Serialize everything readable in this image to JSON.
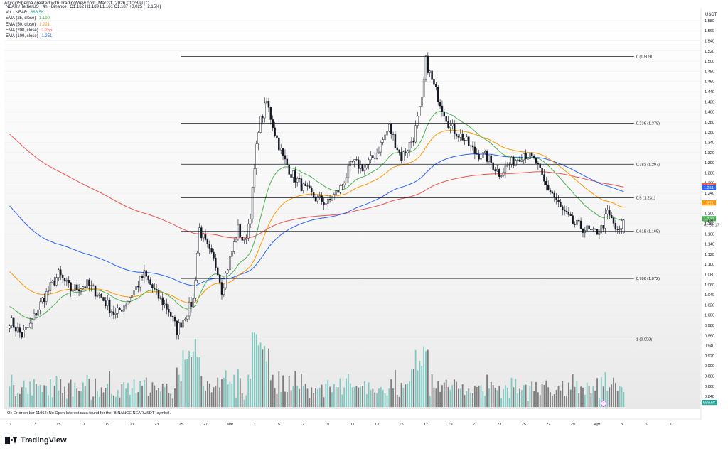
{
  "header": {
    "credit": "AltcoinSherpa created with TradingView.com, Mar 31, 2026 01:28 UTC",
    "currency": "USDT"
  },
  "legend": [
    {
      "label": "NEAR / TetherUS · 4h · Binance",
      "value": "O1.162  H1.189  L1.161  C1.187  +0.025 (+2.15%)",
      "color": "#131722"
    },
    {
      "label": "Vol · NEAR",
      "value": "686.5K",
      "color": "#26a69a"
    },
    {
      "label": "EMA (25, close)",
      "value": "1.190",
      "color": "#4caf50"
    },
    {
      "label": "EMA (50, close)",
      "value": "1.221",
      "color": "#ff9800"
    },
    {
      "label": "EMA (200, close)",
      "value": "1.255",
      "color": "#ef5350"
    },
    {
      "label": "EMA (100, close)",
      "value": "1.251",
      "color": "#2962ff"
    }
  ],
  "footer": {
    "brand": "TradingView",
    "oi_error": "OI: Error on bar 11962: No Open Interest data found for the `BINANCE:NEARUSDT` symbol."
  },
  "chart_data": {
    "type": "candlestick",
    "title": "NEAR / TetherUS · 4h · Binance",
    "y_axis": {
      "ylim": [
        0.815,
        1.605
      ],
      "tick_start": 0.84,
      "tick_end": 1.58,
      "tick_step": 0.02
    },
    "x_axis": {
      "labels": [
        "11",
        "13",
        "15",
        "17",
        "19",
        "21",
        "23",
        "25",
        "27",
        "Mar",
        "3",
        "5",
        "7",
        "9",
        "11",
        "13",
        "15",
        "17",
        "19",
        "21",
        "23",
        "25",
        "27",
        "29",
        "Apr",
        "3",
        "5",
        "7"
      ],
      "label_bar_index": [
        0,
        12,
        24,
        36,
        48,
        60,
        72,
        84,
        96,
        108,
        120,
        132,
        144,
        156,
        168,
        180,
        192,
        204,
        216,
        228,
        240,
        252,
        264,
        276,
        288,
        300,
        312,
        324
      ]
    },
    "fibonacci": [
      {
        "level": "0",
        "price": 1.509
      },
      {
        "level": "0.236",
        "price": 1.378
      },
      {
        "level": "0.382",
        "price": 1.297
      },
      {
        "level": "0.5",
        "price": 1.231
      },
      {
        "level": "0.618",
        "price": 1.165
      },
      {
        "level": "0.786",
        "price": 1.072
      },
      {
        "level": "1",
        "price": 0.953
      }
    ],
    "fib_bar_range": [
      84,
      306
    ],
    "close_anchors": [
      [
        0,
        0.99
      ],
      [
        6,
        0.96
      ],
      [
        10,
        0.98
      ],
      [
        16,
        1.03
      ],
      [
        24,
        1.08
      ],
      [
        30,
        1.05
      ],
      [
        38,
        1.06
      ],
      [
        44,
        1.04
      ],
      [
        52,
        1.0
      ],
      [
        58,
        1.03
      ],
      [
        66,
        1.08
      ],
      [
        72,
        1.04
      ],
      [
        78,
        1.01
      ],
      [
        82,
        0.97
      ],
      [
        86,
        1.0
      ],
      [
        90,
        1.03
      ],
      [
        93,
        1.17
      ],
      [
        96,
        1.14
      ],
      [
        102,
        1.09
      ],
      [
        104,
        1.05
      ],
      [
        108,
        1.11
      ],
      [
        112,
        1.17
      ],
      [
        115,
        1.14
      ],
      [
        118,
        1.2
      ],
      [
        122,
        1.37
      ],
      [
        126,
        1.42
      ],
      [
        130,
        1.36
      ],
      [
        134,
        1.31
      ],
      [
        138,
        1.28
      ],
      [
        144,
        1.25
      ],
      [
        150,
        1.23
      ],
      [
        156,
        1.22
      ],
      [
        162,
        1.25
      ],
      [
        168,
        1.3
      ],
      [
        174,
        1.29
      ],
      [
        180,
        1.32
      ],
      [
        186,
        1.37
      ],
      [
        192,
        1.31
      ],
      [
        198,
        1.35
      ],
      [
        202,
        1.42
      ],
      [
        204,
        1.5
      ],
      [
        208,
        1.45
      ],
      [
        212,
        1.41
      ],
      [
        216,
        1.37
      ],
      [
        222,
        1.35
      ],
      [
        228,
        1.32
      ],
      [
        234,
        1.31
      ],
      [
        240,
        1.28
      ],
      [
        246,
        1.3
      ],
      [
        252,
        1.32
      ],
      [
        258,
        1.3
      ],
      [
        262,
        1.26
      ],
      [
        266,
        1.24
      ],
      [
        270,
        1.21
      ],
      [
        276,
        1.18
      ],
      [
        282,
        1.17
      ],
      [
        286,
        1.16
      ],
      [
        290,
        1.17
      ],
      [
        293,
        1.2
      ],
      [
        296,
        1.18
      ],
      [
        298,
        1.16
      ],
      [
        301,
        1.187
      ]
    ],
    "last_bar": {
      "open": 1.162,
      "high": 1.189,
      "low": 1.161,
      "close": 1.187,
      "change": "+0.025 (+2.15%)"
    },
    "ema_start": {
      "ema25": 1.02,
      "ema50": 1.09,
      "ema100": 1.22,
      "ema200": 1.36
    },
    "ema_colors": {
      "ema25": "#4caf50",
      "ema50": "#ff9800",
      "ema100": "#2962ff",
      "ema200": "#ef5350"
    },
    "price_tags": [
      {
        "text": "1.255",
        "price": 1.255,
        "color": "#ef5350"
      },
      {
        "text": "1.251",
        "price": 1.251,
        "color": "#2962ff"
      },
      {
        "text": "1.221",
        "price": 1.221,
        "color": "#ff9800"
      },
      {
        "text": "1.190",
        "price": 1.19,
        "color": "#4caf50"
      },
      {
        "text": "1.187",
        "price": 1.187,
        "color": "#131722"
      },
      {
        "text": "02:31:17",
        "price": 1.178,
        "color": "#131722"
      }
    ],
    "volume_tag": {
      "text": "686.5K"
    },
    "volume_ylim": [
      0,
      1.0
    ],
    "up_color": "#ffffff",
    "down_color": "#131722",
    "volume_colors": {
      "up": "#80c8c0",
      "down": "#7d7d7d"
    }
  }
}
